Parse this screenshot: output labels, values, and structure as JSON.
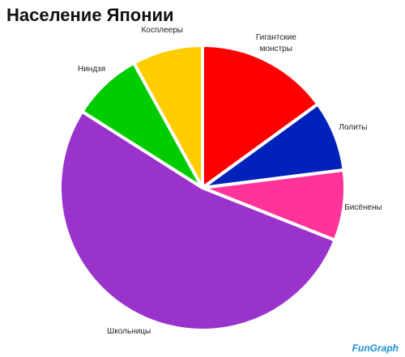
{
  "chart_data": {
    "type": "pie",
    "title": "Население Японии",
    "categories": [
      "Гигантские монстры",
      "Лолиты",
      "Бисёнены",
      "Школьницы",
      "Ниндзя",
      "Косплееры"
    ],
    "values": [
      15,
      8,
      8,
      53,
      8,
      8
    ],
    "colors": [
      "#ff0000",
      "#0022bb",
      "#ff3399",
      "#9933cc",
      "#00cc00",
      "#ffcc00"
    ],
    "watermark": "FunGraph"
  }
}
